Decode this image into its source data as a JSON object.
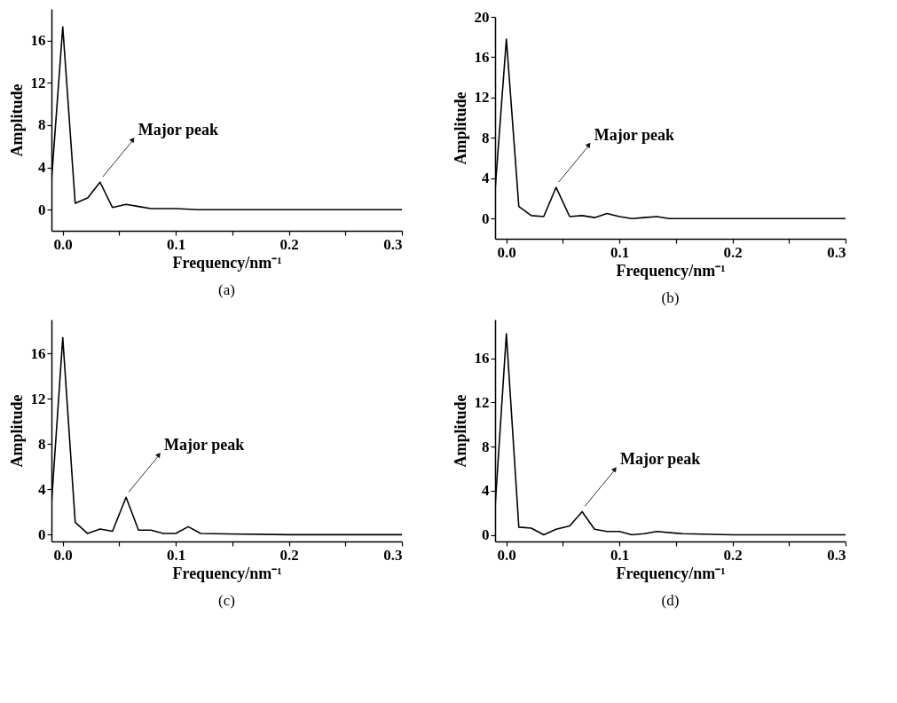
{
  "chart_data": [
    {
      "type": "line",
      "title": "(a)",
      "xlabel": "Frequency/nm⁻¹",
      "ylabel": "Amplitude",
      "color": "#000000",
      "marker": "none",
      "grid": false,
      "x": [
        -0.01,
        0,
        0.011,
        0.022,
        0.033,
        0.044,
        0.056,
        0.067,
        0.078,
        0.1,
        0.12,
        0.16,
        0.2,
        0.3
      ],
      "values": [
        2.7,
        17.3,
        0.6,
        1.1,
        2.6,
        0.2,
        0.5,
        0.3,
        0.1,
        0.1,
        0.0,
        0,
        0,
        0
      ],
      "xlim": [
        -0.01,
        0.3
      ],
      "xticks": [
        {
          "value": 0,
          "label": "0.0"
        },
        {
          "value": 0.05,
          "label": null
        },
        0.1,
        {
          "value": 0.15,
          "label": null
        },
        0.2,
        {
          "value": 0.25,
          "label": null
        },
        0.3
      ],
      "ylim": [
        -2,
        19
      ],
      "yticks": [
        0,
        4,
        8,
        12,
        16
      ],
      "annotations": [
        {
          "text": "Major peak",
          "x": 0.033,
          "y": 2.6
        }
      ]
    },
    {
      "type": "line",
      "title": "(b)",
      "xlabel": "Frequency/nm⁻¹",
      "ylabel": "Amplitude",
      "color": "#000000",
      "marker": "none",
      "grid": false,
      "x": [
        -0.01,
        0,
        0.011,
        0.022,
        0.033,
        0.044,
        0.056,
        0.067,
        0.078,
        0.089,
        0.1,
        0.111,
        0.122,
        0.133,
        0.144,
        0.2,
        0.3
      ],
      "values": [
        2.8,
        17.8,
        1.2,
        0.3,
        0.2,
        3.1,
        0.2,
        0.3,
        0.1,
        0.5,
        0.2,
        0.0,
        0.1,
        0.2,
        0.0,
        0.0,
        0
      ],
      "xlim": [
        -0.01,
        0.3
      ],
      "xticks": [
        {
          "value": 0,
          "label": "0.0"
        },
        {
          "value": 0.05,
          "label": null
        },
        0.1,
        {
          "value": 0.15,
          "label": null
        },
        0.2,
        {
          "value": 0.25,
          "label": null
        },
        0.3
      ],
      "ylim": [
        -2,
        20
      ],
      "yticks": [
        0,
        4,
        8,
        12,
        16,
        20
      ],
      "annotations": [
        {
          "text": "Major peak",
          "x": 0.044,
          "y": 3.1
        }
      ]
    },
    {
      "type": "line",
      "title": "(c)",
      "xlabel": "Frequency/nm⁻¹",
      "ylabel": "Amplitude",
      "color": "#000000",
      "marker": "none",
      "grid": false,
      "x": [
        -0.01,
        0,
        0.011,
        0.022,
        0.033,
        0.044,
        0.056,
        0.067,
        0.078,
        0.089,
        0.1,
        0.111,
        0.122,
        0.2,
        0.3
      ],
      "values": [
        2.7,
        17.4,
        1.1,
        0.1,
        0.5,
        0.3,
        3.3,
        0.4,
        0.4,
        0.1,
        0.1,
        0.7,
        0.1,
        0.0,
        0
      ],
      "xlim": [
        -0.01,
        0.3
      ],
      "xticks": [
        {
          "value": 0,
          "label": "0.0"
        },
        {
          "value": 0.05,
          "label": null
        },
        0.1,
        {
          "value": 0.15,
          "label": null
        },
        0.2,
        {
          "value": 0.25,
          "label": null
        },
        0.3
      ],
      "ylim": [
        -0.6,
        19
      ],
      "yticks": [
        0,
        4,
        8,
        12,
        16
      ],
      "annotations": [
        {
          "text": "Major peak",
          "x": 0.056,
          "y": 3.3
        }
      ]
    },
    {
      "type": "line",
      "title": "(d)",
      "xlabel": "Frequency/nm⁻¹",
      "ylabel": "Amplitude",
      "color": "#000000",
      "marker": "none",
      "grid": false,
      "x": [
        -0.01,
        0,
        0.011,
        0.022,
        0.033,
        0.044,
        0.056,
        0.067,
        0.078,
        0.089,
        0.1,
        0.111,
        0.122,
        0.133,
        0.156,
        0.2,
        0.3
      ],
      "values": [
        2.5,
        18.2,
        0.7,
        0.6,
        0.0,
        0.5,
        0.8,
        2.1,
        0.5,
        0.3,
        0.3,
        0.0,
        0.1,
        0.3,
        0.1,
        0.0,
        0
      ],
      "xlim": [
        -0.01,
        0.3
      ],
      "xticks": [
        {
          "value": 0,
          "label": "0.0"
        },
        {
          "value": 0.05,
          "label": null
        },
        0.1,
        {
          "value": 0.15,
          "label": null
        },
        0.2,
        {
          "value": 0.25,
          "label": null
        },
        0.3
      ],
      "ylim": [
        -0.6,
        19.5
      ],
      "yticks": [
        0,
        4,
        8,
        12,
        16
      ],
      "annotations": [
        {
          "text": "Major peak",
          "x": 0.067,
          "y": 2.1
        }
      ]
    }
  ]
}
